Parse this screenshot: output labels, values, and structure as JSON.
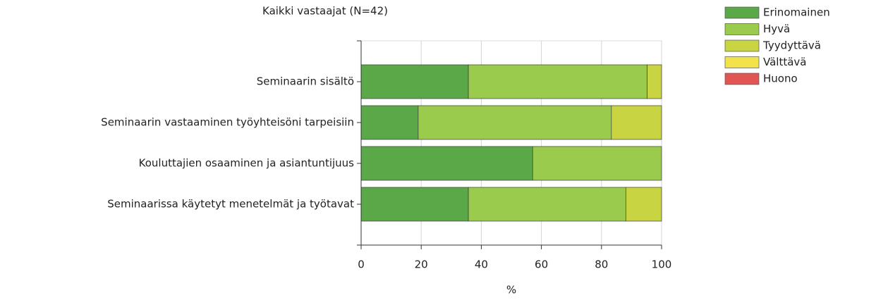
{
  "chart_data": {
    "type": "stacked-barh",
    "title": "Kaikki vastaajat (N=42)",
    "x_label": "%",
    "categories": [
      "Seminaarin sisältö",
      "Seminaarin vastaaminen työyhteisöni tarpeisiin",
      "Kouluttajien osaaminen ja asiantuntijuus",
      "Seminaarissa käytetyt menetelmät ja työtavat"
    ],
    "series": [
      {
        "name": "Erinomainen",
        "color": "#5aa847",
        "values": [
          35.7,
          19.0,
          57.1,
          35.7
        ]
      },
      {
        "name": "Hyvä",
        "color": "#9bcb4c",
        "values": [
          59.5,
          64.3,
          42.9,
          52.4
        ]
      },
      {
        "name": "Tyydyttävä",
        "color": "#c9d443",
        "values": [
          4.8,
          16.7,
          0,
          11.9
        ]
      },
      {
        "name": "Välttävä",
        "color": "#f2e34a",
        "values": [
          0,
          0,
          0,
          0
        ]
      },
      {
        "name": "Huono",
        "color": "#e25555",
        "values": [
          0,
          0,
          0,
          0
        ]
      }
    ],
    "xlim": [
      0,
      100
    ],
    "xticks": [
      0,
      20,
      40,
      60,
      80,
      100
    ],
    "grid": true,
    "legend": "top-right"
  }
}
